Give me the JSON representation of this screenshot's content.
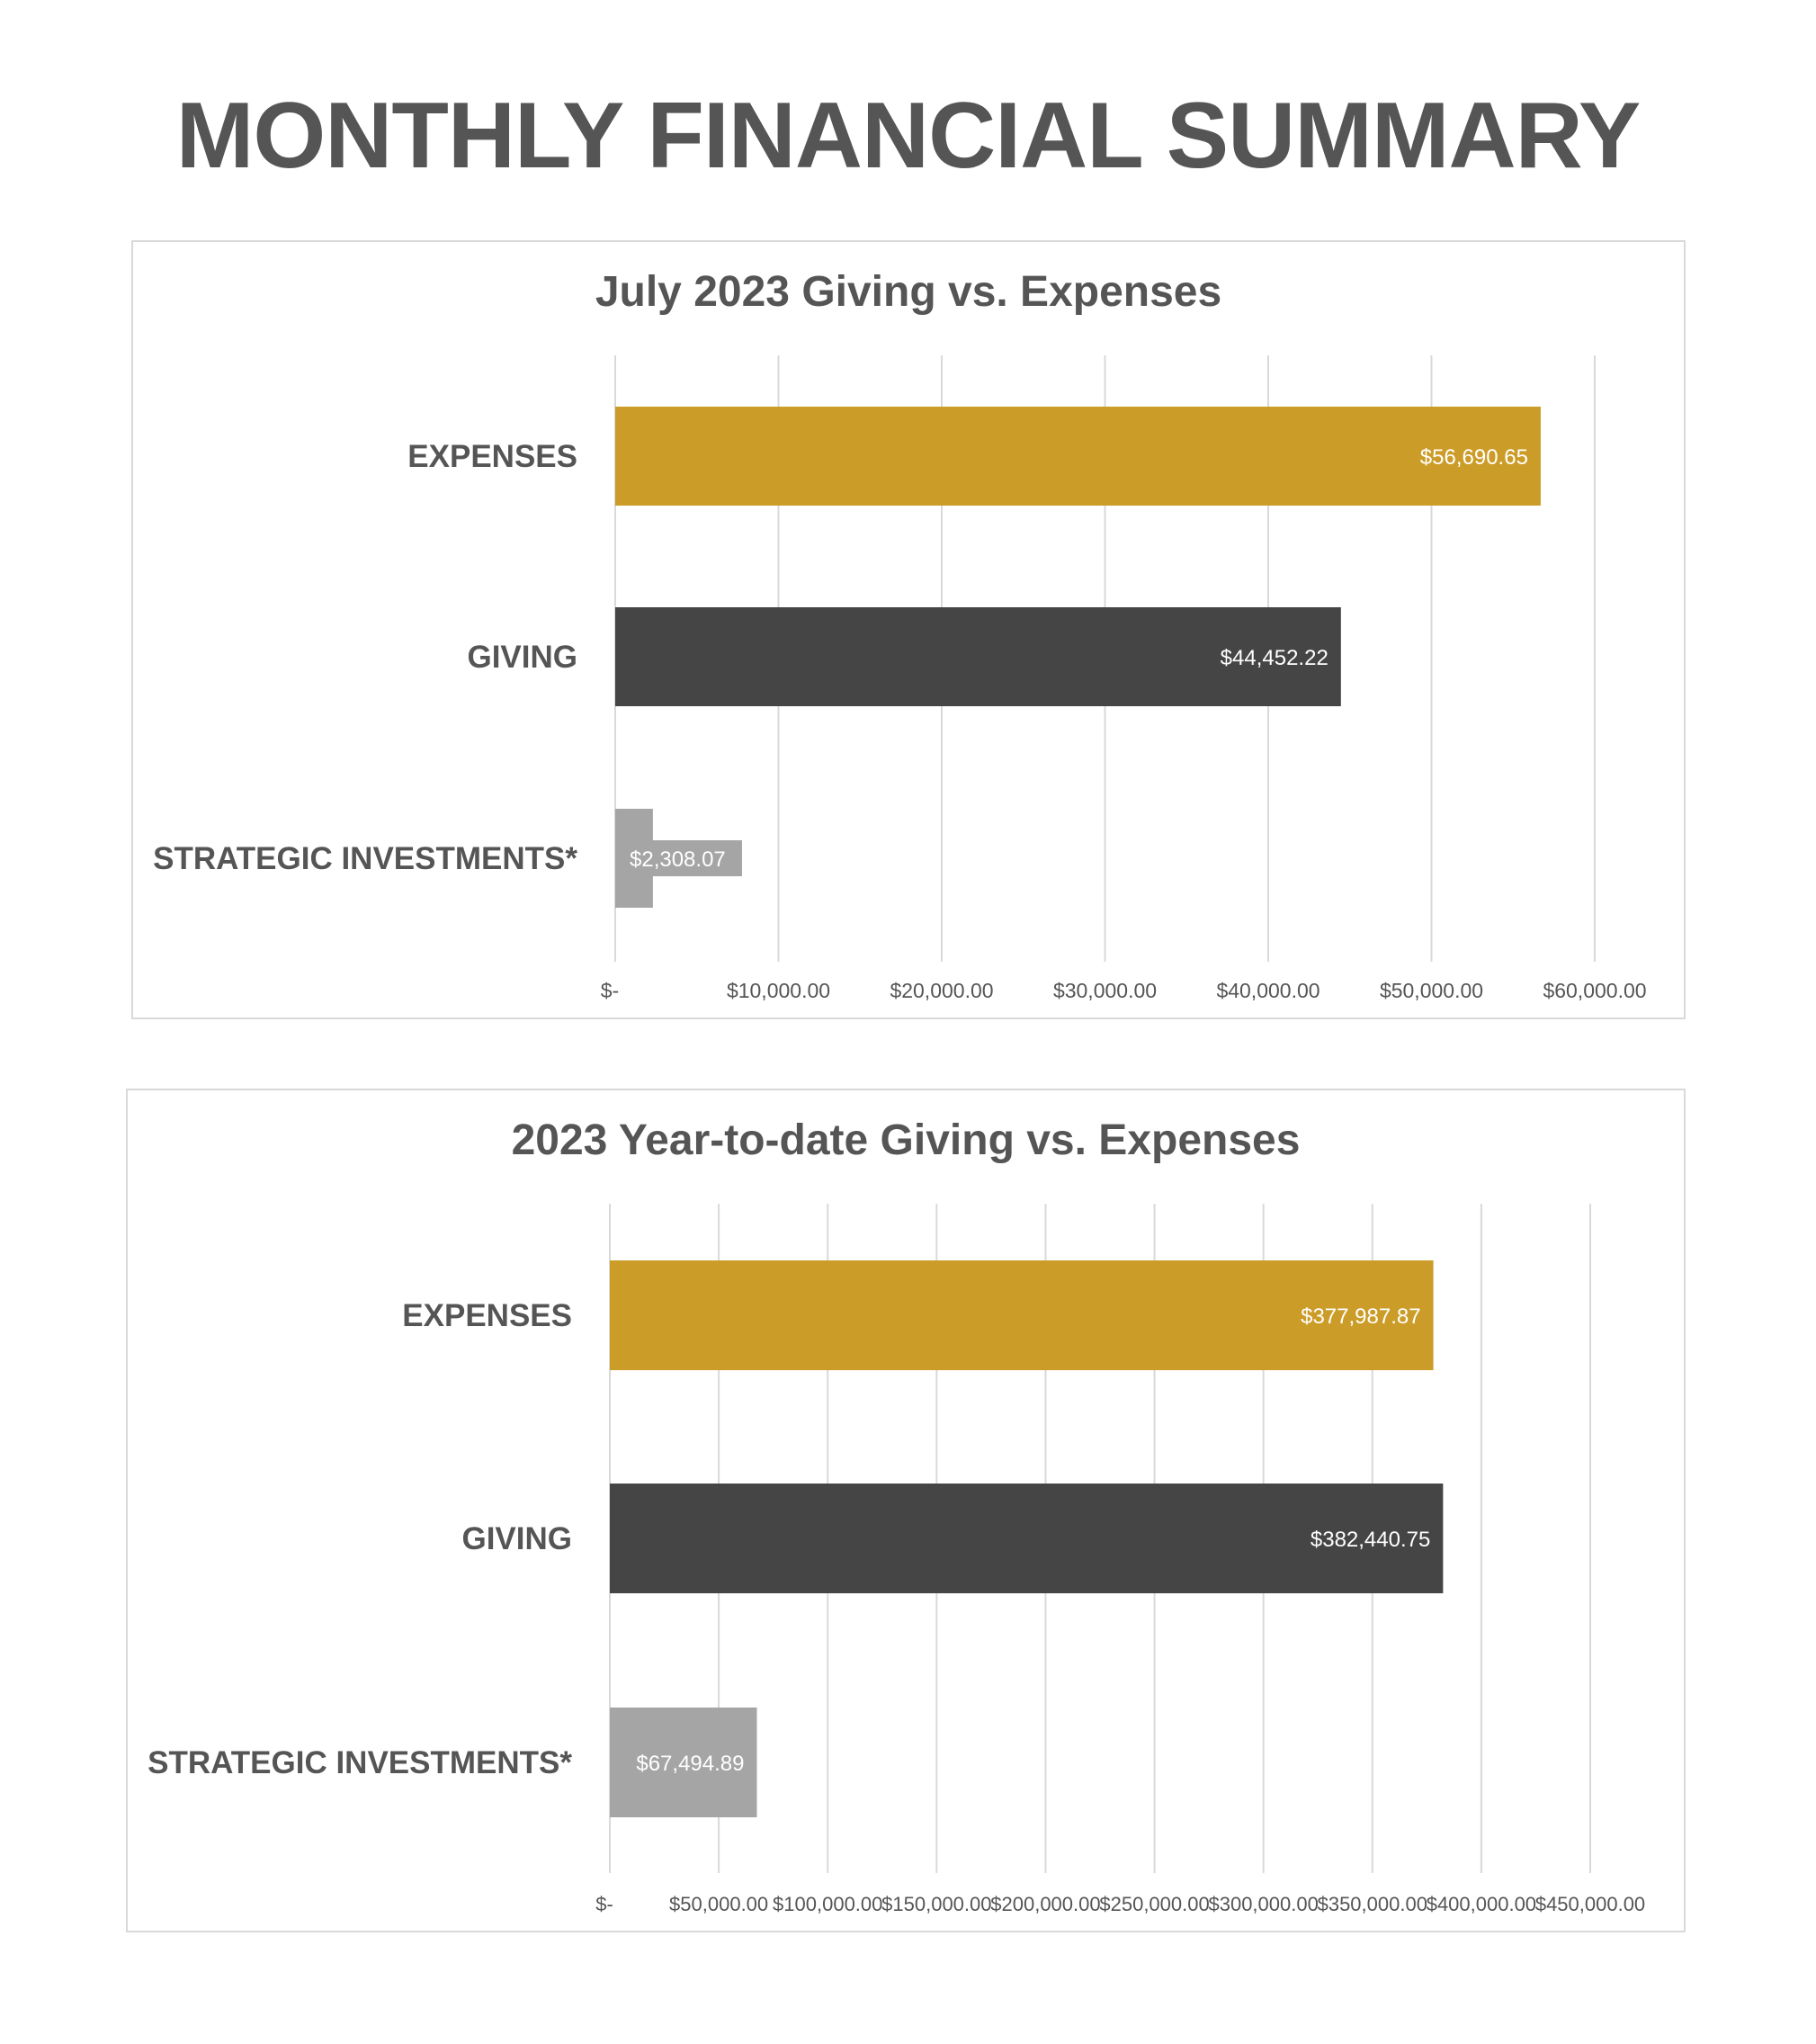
{
  "page": {
    "title": "MONTHLY FINANCIAL SUMMARY"
  },
  "colors": {
    "expenses": "#cc9c28",
    "giving": "#454545",
    "strategic": "#a5a5a5",
    "grid": "#d9d9d9",
    "text": "#555555"
  },
  "chart_data": [
    {
      "type": "bar",
      "orientation": "horizontal",
      "title": "July 2023 Giving vs. Expenses",
      "categories": [
        "EXPENSES",
        "GIVING",
        "STRATEGIC INVESTMENTS*"
      ],
      "values": [
        56690.65,
        44452.22,
        2308.07
      ],
      "data_labels": [
        "$56,690.65",
        "$44,452.22",
        "$2,308.07"
      ],
      "xlim": [
        0,
        60000
      ],
      "ticks": [
        0,
        10000,
        20000,
        30000,
        40000,
        50000,
        60000
      ],
      "tick_labels": [
        "$-",
        "$10,000.00",
        "$20,000.00",
        "$30,000.00",
        "$40,000.00",
        "$50,000.00",
        "$60,000.00"
      ],
      "grid": true,
      "legend": "none"
    },
    {
      "type": "bar",
      "orientation": "horizontal",
      "title": "2023 Year-to-date Giving vs. Expenses",
      "categories": [
        "EXPENSES",
        "GIVING",
        "STRATEGIC INVESTMENTS*"
      ],
      "values": [
        377987.87,
        382440.75,
        67494.89
      ],
      "data_labels": [
        "$377,987.87",
        "$382,440.75",
        "$67,494.89"
      ],
      "xlim": [
        0,
        450000
      ],
      "ticks": [
        0,
        50000,
        100000,
        150000,
        200000,
        250000,
        300000,
        350000,
        400000,
        450000
      ],
      "tick_labels": [
        "$-",
        "$50,000.00",
        "$100,000.00",
        "$150,000.00",
        "$200,000.00",
        "$250,000.00",
        "$300,000.00",
        "$350,000.00",
        "$400,000.00",
        "$450,000.00"
      ],
      "grid": true,
      "legend": "none"
    }
  ]
}
